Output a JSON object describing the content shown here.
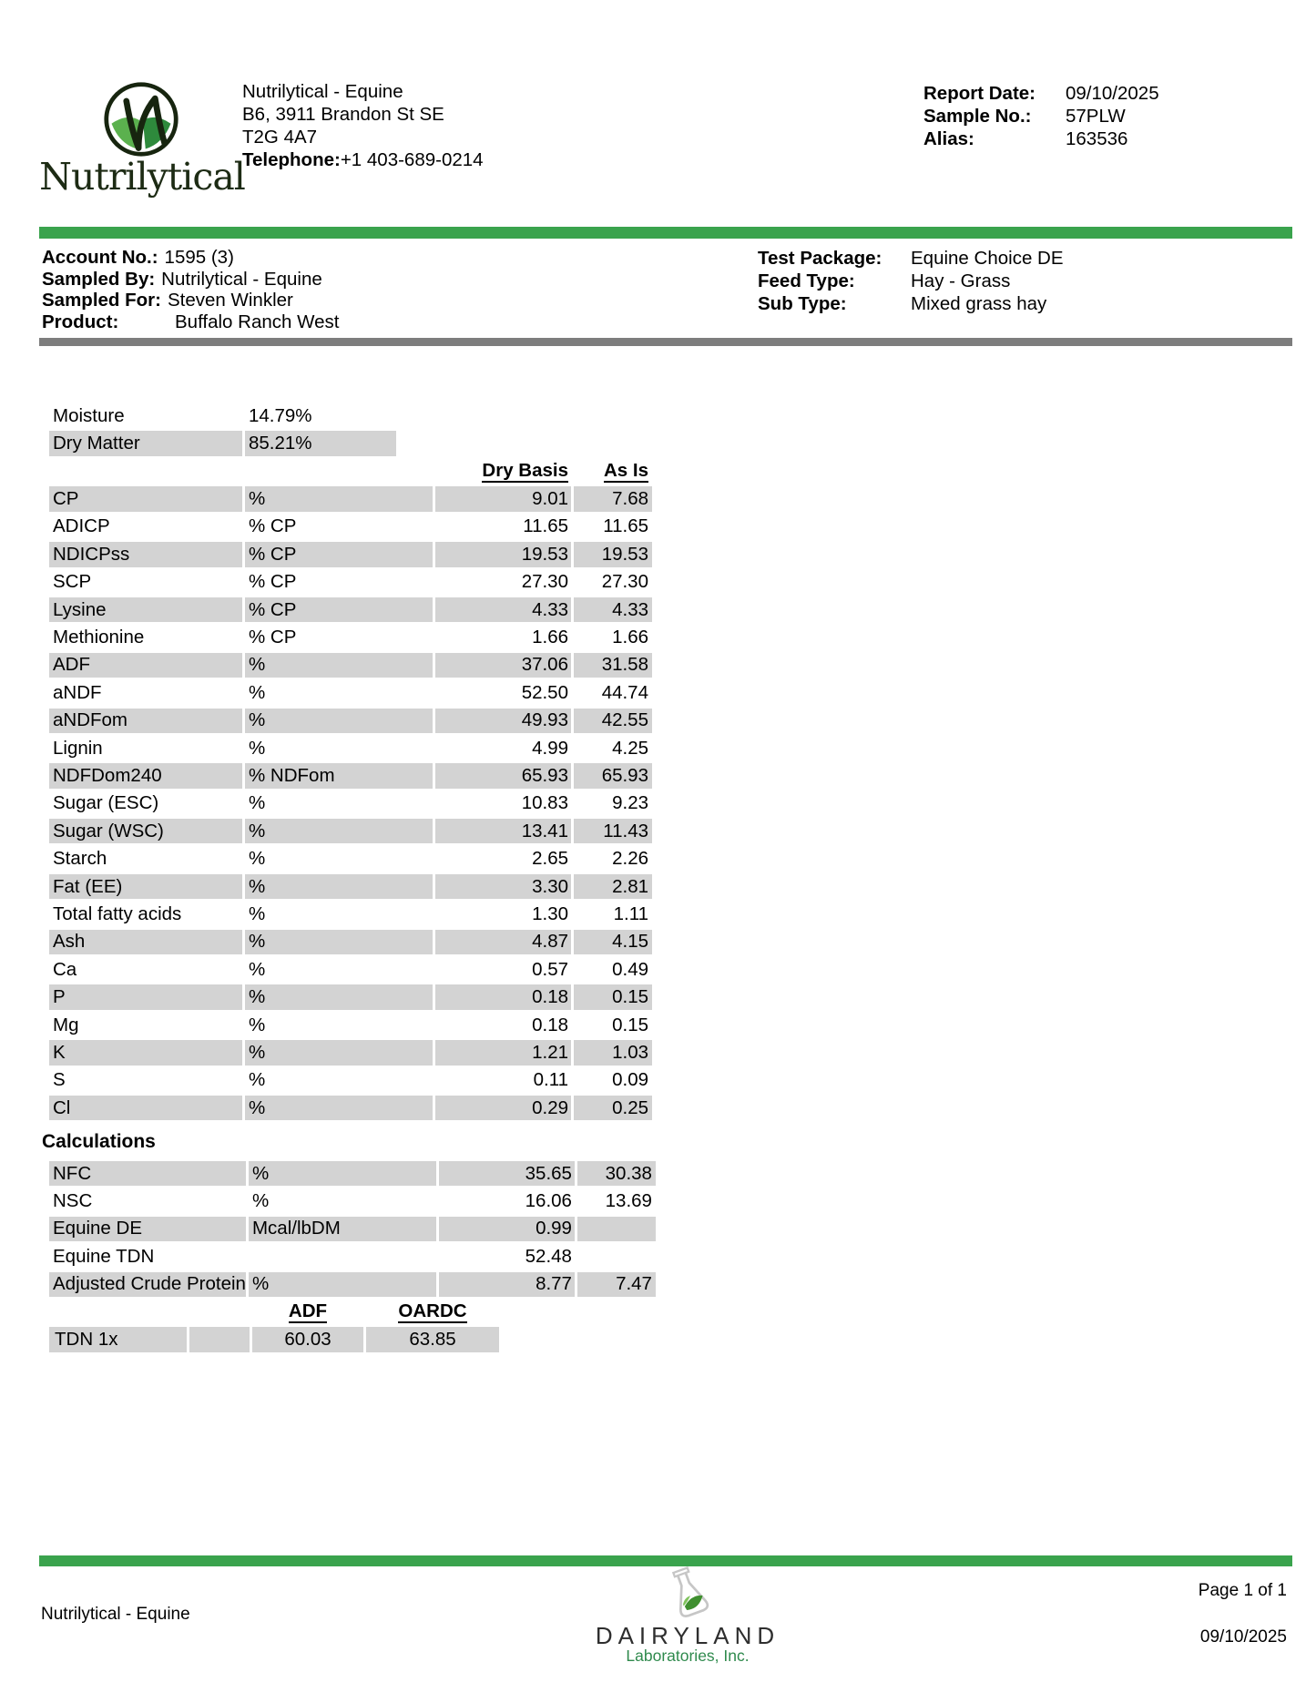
{
  "colors": {
    "accent_green": "#3aa34d",
    "row_gray": "#d3d3d3",
    "divider_gray": "#7d7d7d",
    "dairyland_green": "#2f8a4d",
    "leaf_light_green": "#7fc35c",
    "leaf_dark_green": "#3f8f2f",
    "logo_dark": "#1d2b14"
  },
  "header": {
    "logo_text": "Nutrilytical",
    "company": {
      "name": "Nutrilytical - Equine",
      "address1": "B6, 3911 Brandon St SE",
      "address2": "T2G 4A7",
      "phone_label": "Telephone:",
      "phone": "+1 403-689-0214"
    },
    "report": [
      {
        "label": "Report Date:",
        "value": "09/10/2025"
      },
      {
        "label": "Sample No.:",
        "value": "57PLW"
      },
      {
        "label": "Alias:",
        "value": "163536"
      }
    ]
  },
  "info": {
    "left": [
      {
        "label": "Account No.:",
        "value": "1595 (3)"
      },
      {
        "label": "Sampled By:",
        "value": "Nutrilytical - Equine"
      },
      {
        "label": "Sampled For:",
        "value": "Steven Winkler"
      },
      {
        "label": "Product:",
        "value": "Buffalo Ranch West"
      }
    ],
    "right": [
      {
        "label": "Test Package:",
        "value": "Equine Choice DE"
      },
      {
        "label": "Feed Type:",
        "value": "Hay - Grass"
      },
      {
        "label": "Sub Type:",
        "value": "Mixed grass hay"
      }
    ]
  },
  "moisture_table": {
    "rows": [
      {
        "label": "Moisture",
        "value": "14.79%",
        "shaded": false
      },
      {
        "label": "Dry Matter",
        "value": "85.21%",
        "shaded": true
      }
    ]
  },
  "analysis_table": {
    "headers": {
      "dry_basis": "Dry Basis",
      "as_is": "As Is"
    },
    "rows": [
      {
        "label": "CP",
        "unit": "%",
        "dry": "9.01",
        "asis": "7.68",
        "shaded": true
      },
      {
        "label": "ADICP",
        "unit": "% CP",
        "dry": "11.65",
        "asis": "11.65",
        "shaded": false
      },
      {
        "label": "NDICPss",
        "unit": "% CP",
        "dry": "19.53",
        "asis": "19.53",
        "shaded": true
      },
      {
        "label": "SCP",
        "unit": "% CP",
        "dry": "27.30",
        "asis": "27.30",
        "shaded": false
      },
      {
        "label": "Lysine",
        "unit": "% CP",
        "dry": "4.33",
        "asis": "4.33",
        "shaded": true
      },
      {
        "label": "Methionine",
        "unit": "% CP",
        "dry": "1.66",
        "asis": "1.66",
        "shaded": false
      },
      {
        "label": "ADF",
        "unit": "%",
        "dry": "37.06",
        "asis": "31.58",
        "shaded": true
      },
      {
        "label": "aNDF",
        "unit": "%",
        "dry": "52.50",
        "asis": "44.74",
        "shaded": false
      },
      {
        "label": "aNDFom",
        "unit": "%",
        "dry": "49.93",
        "asis": "42.55",
        "shaded": true
      },
      {
        "label": "Lignin",
        "unit": "%",
        "dry": "4.99",
        "asis": "4.25",
        "shaded": false
      },
      {
        "label": "NDFDom240",
        "unit": "% NDFom",
        "dry": "65.93",
        "asis": "65.93",
        "shaded": true
      },
      {
        "label": "Sugar (ESC)",
        "unit": "%",
        "dry": "10.83",
        "asis": "9.23",
        "shaded": false
      },
      {
        "label": "Sugar (WSC)",
        "unit": "%",
        "dry": "13.41",
        "asis": "11.43",
        "shaded": true
      },
      {
        "label": "Starch",
        "unit": "%",
        "dry": "2.65",
        "asis": "2.26",
        "shaded": false
      },
      {
        "label": "Fat (EE)",
        "unit": "%",
        "dry": "3.30",
        "asis": "2.81",
        "shaded": true
      },
      {
        "label": "Total fatty acids",
        "unit": "%",
        "dry": "1.30",
        "asis": "1.11",
        "shaded": false
      },
      {
        "label": "Ash",
        "unit": "%",
        "dry": "4.87",
        "asis": "4.15",
        "shaded": true
      },
      {
        "label": "Ca",
        "unit": "%",
        "dry": "0.57",
        "asis": "0.49",
        "shaded": false
      },
      {
        "label": "P",
        "unit": "%",
        "dry": "0.18",
        "asis": "0.15",
        "shaded": true
      },
      {
        "label": "Mg",
        "unit": "%",
        "dry": "0.18",
        "asis": "0.15",
        "shaded": false
      },
      {
        "label": "K",
        "unit": "%",
        "dry": "1.21",
        "asis": "1.03",
        "shaded": true
      },
      {
        "label": "S",
        "unit": "%",
        "dry": "0.11",
        "asis": "0.09",
        "shaded": false
      },
      {
        "label": "Cl",
        "unit": "%",
        "dry": "0.29",
        "asis": "0.25",
        "shaded": true
      }
    ]
  },
  "calculations": {
    "title": "Calculations",
    "rows": [
      {
        "label": "NFC",
        "unit": "%",
        "dry": "35.65",
        "asis": "30.38",
        "shaded": true
      },
      {
        "label": "NSC",
        "unit": "%",
        "dry": "16.06",
        "asis": "13.69",
        "shaded": false
      },
      {
        "label": "Equine DE",
        "unit": "Mcal/lbDM",
        "dry": "0.99",
        "asis": "",
        "shaded": true
      },
      {
        "label": "Equine TDN",
        "unit": "",
        "dry": "52.48",
        "asis": "",
        "shaded": false
      },
      {
        "label": "Adjusted Crude Protein",
        "unit": "%",
        "dry": "8.77",
        "asis": "7.47",
        "shaded": true
      }
    ],
    "tdn": {
      "headers": {
        "adf": "ADF",
        "oardc": "OARDC"
      },
      "rows": [
        {
          "label": "TDN 1x",
          "spacer": "",
          "adf": "60.03",
          "oardc": "63.85",
          "shaded": true
        }
      ]
    }
  },
  "footer": {
    "left_text": "Nutrilytical - Equine",
    "lab_name": "DAIRYLAND",
    "lab_sub": "Laboratories, Inc.",
    "page": "Page 1 of 1",
    "date": "09/10/2025"
  }
}
